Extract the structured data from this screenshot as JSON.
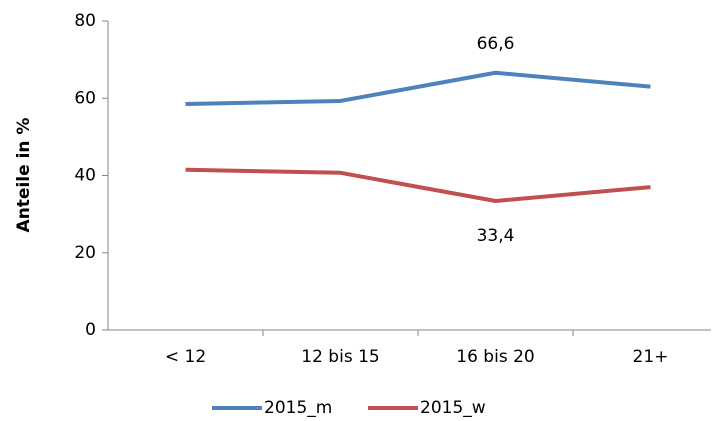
{
  "chart_data": {
    "type": "line",
    "y_label": "Anteile in %",
    "categories": [
      "< 12",
      "12 bis 15",
      "16 bis 20",
      "21+"
    ],
    "series": [
      {
        "name": "2015_m",
        "color": "#4f81bd",
        "values": [
          58.5,
          59.3,
          66.6,
          63.0
        ],
        "value_labels": [
          null,
          null,
          "66,6",
          null
        ]
      },
      {
        "name": "2015_w",
        "color": "#c0504d",
        "values": [
          41.5,
          40.7,
          33.4,
          37.0
        ],
        "value_labels": [
          null,
          null,
          "33,4",
          null
        ]
      }
    ],
    "ylim": [
      0,
      80
    ],
    "yticks": [
      0,
      20,
      40,
      60,
      80
    ],
    "grid": false,
    "legend": "bottom"
  }
}
